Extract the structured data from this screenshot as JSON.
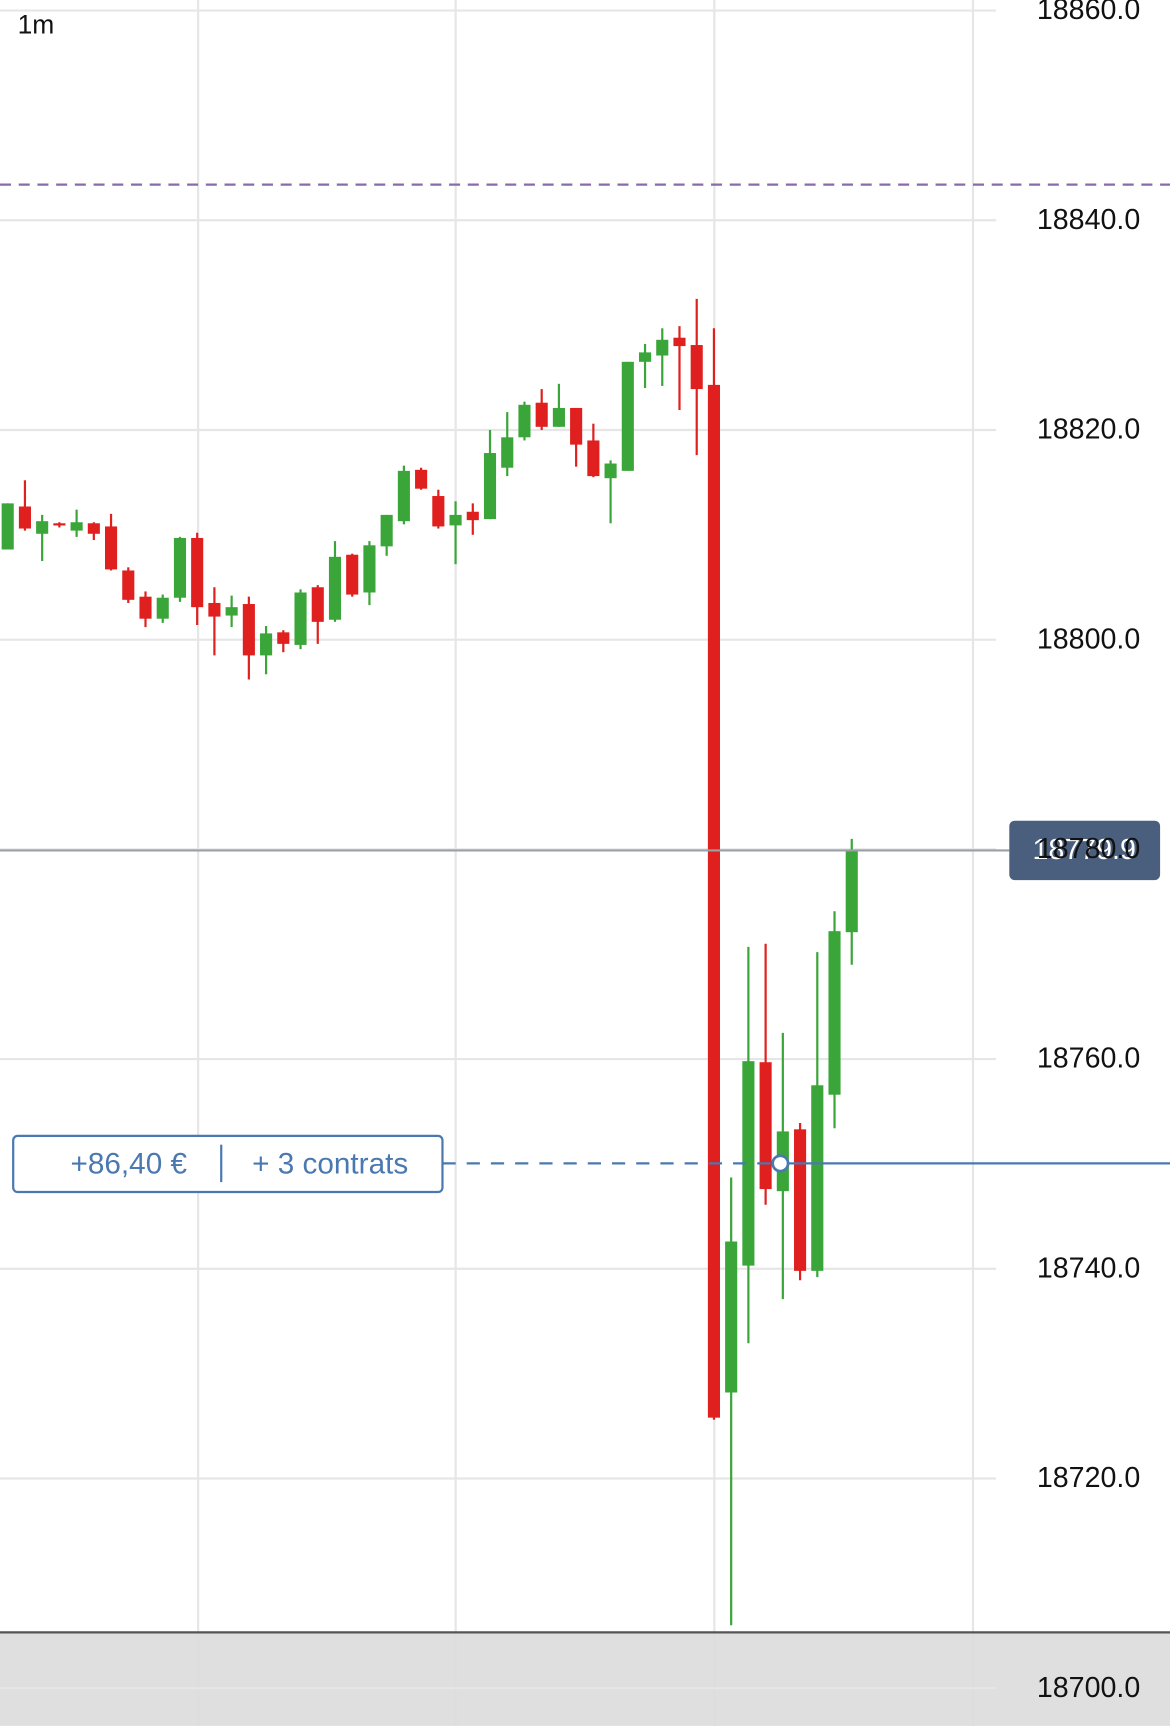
{
  "chart_data": {
    "type": "candlestick",
    "timeframe": "1m",
    "up_color": "#3aa63a",
    "down_color": "#e0201f",
    "grid": true,
    "ylim": [
      18696.4,
      18861
    ],
    "yticks": [
      {
        "value": 18700,
        "label": "18700.0"
      },
      {
        "value": 18720,
        "label": "18720.0"
      },
      {
        "value": 18740,
        "label": "18740.0"
      },
      {
        "value": 18760,
        "label": "18760.0"
      },
      {
        "value": 18780,
        "label": "18780.0"
      },
      {
        "value": 18800,
        "label": "18800.0"
      },
      {
        "value": 18820,
        "label": "18820.0"
      },
      {
        "value": 18840,
        "label": "18840.0"
      },
      {
        "value": 18860,
        "label": "18860.0"
      }
    ],
    "open": [
      18808.6,
      18812.7,
      18810.1,
      18811.1,
      18810.4,
      18811.1,
      18810.8,
      18806.6,
      18804.1,
      18802.0,
      18804.0,
      18809.7,
      18803.5,
      18802.3,
      18803.4,
      18798.5,
      18800.7,
      18799.5,
      18805.0,
      18801.9,
      18808.1,
      18804.5,
      18808.9,
      18811.3,
      18816.2,
      18813.7,
      18810.9,
      18812.2,
      18811.5,
      18816.4,
      18819.3,
      18822.6,
      18820.3,
      18822.1,
      18819.0,
      18815.4,
      18816.1,
      18826.5,
      18827.1,
      18828.8,
      18828.1,
      18824.3,
      18728.2,
      18740.3,
      18759.7,
      18747.4,
      18753.3,
      18739.8,
      18756.6,
      18772.1
    ],
    "high": [
      18813.0,
      18815.2,
      18811.9,
      18811.2,
      18812.4,
      18811.2,
      18812.0,
      18806.9,
      18804.6,
      18804.3,
      18809.8,
      18810.2,
      18805.0,
      18804.2,
      18804.1,
      18801.3,
      18800.9,
      18804.8,
      18805.2,
      18809.4,
      18808.2,
      18809.4,
      18811.9,
      18816.6,
      18816.4,
      18814.3,
      18813.2,
      18813.0,
      18820.0,
      18821.7,
      18822.7,
      18823.9,
      18824.4,
      18822.1,
      18820.6,
      18817.1,
      18826.5,
      18828.2,
      18829.7,
      18829.9,
      18832.5,
      18829.7,
      18748.7,
      18770.7,
      18771.0,
      18762.5,
      18753.9,
      18770.2,
      18774.1,
      18781.0
    ],
    "low": [
      18808.6,
      18810.4,
      18807.5,
      18810.7,
      18809.8,
      18809.5,
      18806.6,
      18803.5,
      18801.2,
      18801.6,
      18803.6,
      18801.4,
      18798.5,
      18801.2,
      18796.2,
      18796.7,
      18798.8,
      18799.1,
      18799.6,
      18801.7,
      18804.1,
      18803.3,
      18808.0,
      18811.0,
      18814.3,
      18810.6,
      18807.2,
      18810.0,
      18811.5,
      18815.6,
      18819.0,
      18820.0,
      18820.3,
      18816.5,
      18815.5,
      18811.1,
      18816.1,
      18824.0,
      18824.2,
      18821.9,
      18817.6,
      18725.6,
      18706.0,
      18732.9,
      18746.1,
      18737.1,
      18738.9,
      18739.2,
      18753.4,
      18769.0
    ],
    "close": [
      18813.0,
      18810.6,
      18811.3,
      18810.9,
      18811.2,
      18810.1,
      18806.7,
      18803.8,
      18802.0,
      18804.0,
      18809.7,
      18803.1,
      18802.2,
      18803.1,
      18798.5,
      18800.6,
      18799.6,
      18804.5,
      18801.7,
      18807.9,
      18804.3,
      18809.0,
      18811.9,
      18816.1,
      18814.4,
      18810.8,
      18811.9,
      18811.4,
      18817.8,
      18819.3,
      18822.4,
      18820.3,
      18822.1,
      18818.6,
      18815.6,
      18816.8,
      18826.5,
      18827.4,
      18828.6,
      18828.0,
      18823.9,
      18725.8,
      18742.6,
      18759.8,
      18747.6,
      18753.1,
      18739.8,
      18757.5,
      18772.2,
      18779.9
    ],
    "last_price": {
      "value": 18779.9,
      "label": "18779.9",
      "color": "#4a5f7e"
    },
    "order_line": {
      "value": 18843.4,
      "color": "#8a6aa8"
    },
    "position": {
      "value": 18750.05,
      "pnl": "+86,40 €",
      "size": "+ 3 contrats",
      "color": "#4a78b0"
    }
  }
}
